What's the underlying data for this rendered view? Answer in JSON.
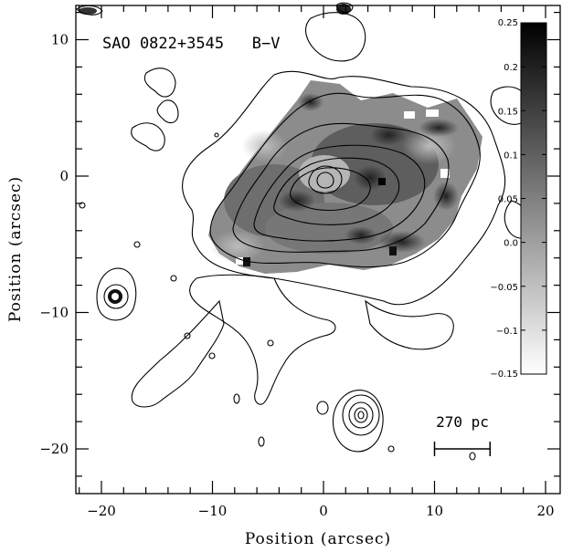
{
  "figure": {
    "title": "SAO 0822+3545   B−V",
    "xlabel": "Position (arcsec)",
    "ylabel": "Position (arcsec)",
    "scale_bar_label": "270 pc"
  },
  "chart_data": {
    "type": "heatmap",
    "title": "SAO 0822+3545   B−V",
    "xlabel": "Position (arcsec)",
    "ylabel": "Position (arcsec)",
    "xlim": [
      -22.5,
      21
    ],
    "ylim": [
      -23,
      12.5
    ],
    "x_ticks": [
      -20,
      -10,
      0,
      10,
      20
    ],
    "x_tick_labels": [
      "−20",
      "−10",
      "0",
      "10",
      "20"
    ],
    "y_ticks": [
      -20,
      -10,
      0,
      10
    ],
    "y_tick_labels": [
      "−20",
      "−10",
      "0",
      "10"
    ],
    "colorbar": {
      "min": -0.15,
      "max": 0.25,
      "colormap": "white-to-black",
      "ticks": [
        0.25,
        0.2,
        0.15,
        0.1,
        0.05,
        0.0,
        -0.05,
        -0.1,
        -0.15
      ],
      "tick_labels": [
        "0.25",
        "0.2",
        "0.15",
        "0.1",
        "0.05",
        "0.0",
        "−0.05",
        "−0.1",
        "−0.15"
      ]
    },
    "scale_bar": {
      "label": "270 pc",
      "x_start": 10,
      "x_end": 15,
      "y": -20
    },
    "sources": [
      {
        "role": "main galaxy",
        "x": 0,
        "y": 0
      },
      {
        "role": "compact source",
        "x": -19,
        "y": -9
      },
      {
        "role": "compact source",
        "x": 3.5,
        "y": -17.5
      },
      {
        "role": "compact source",
        "x": 2,
        "y": 12
      }
    ],
    "grid": false
  }
}
